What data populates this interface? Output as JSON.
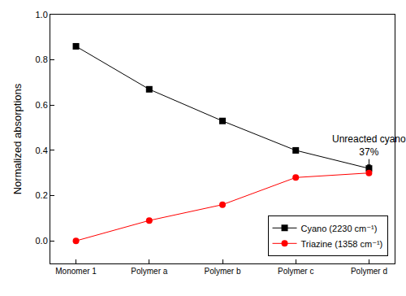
{
  "chart_data": {
    "type": "line",
    "y_label": "Normalized absorptions",
    "categories": [
      "Monomer 1",
      "Polymer a",
      "Polymer b",
      "Polymer c",
      "Polymer d"
    ],
    "series": [
      {
        "name": "Cyano (2230 cm⁻¹)",
        "color": "#000000",
        "marker": "square",
        "line_style": "solid",
        "values": [
          0.86,
          0.67,
          0.53,
          0.4,
          0.32
        ]
      },
      {
        "name": "Triazine (1358 cm⁻¹)",
        "color": "#ff0000",
        "marker": "circle",
        "line_style": "solid",
        "values": [
          0.0,
          0.09,
          0.16,
          0.28,
          0.3
        ]
      }
    ],
    "ylim": [
      -0.1,
      1.0
    ],
    "yticks": [
      {
        "value": 0,
        "label": "0.0"
      },
      0.2,
      0.4,
      0.6,
      0.8,
      {
        "value": 1,
        "label": "1.0"
      }
    ],
    "annotations": [
      {
        "text": [
          "Unreacted cyano",
          "37%"
        ],
        "category": "Polymer d",
        "series": "Cyano (2230 cm⁻¹)"
      }
    ],
    "legend": "bottom right",
    "grid": false
  }
}
